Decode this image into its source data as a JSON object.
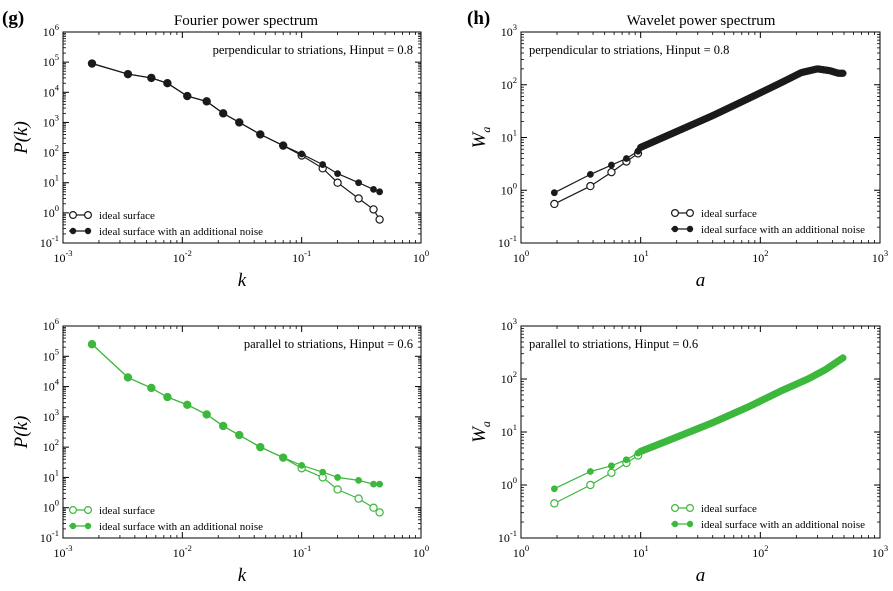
{
  "panels": {
    "g_label": "(g)",
    "h_label": "(h)",
    "g_title": "Fourier power spectrum",
    "h_title": "Wavelet power spectrum"
  },
  "colors": {
    "black_series": "#1a1a1a",
    "green_series": "#3cb83c"
  },
  "chart_data": [
    {
      "id": "g-top",
      "type": "line",
      "log_x": true,
      "log_y": true,
      "xlim": [
        0.001,
        1
      ],
      "ylim": [
        0.1,
        1000000
      ],
      "xticks": [
        0.001,
        0.01,
        0.1,
        1
      ],
      "yticks": [
        0.1,
        1,
        10,
        100,
        1000,
        10000,
        100000,
        1000000
      ],
      "x_tick_labels": [
        "10^-3",
        "10^-2",
        "10^-1",
        "10^0"
      ],
      "y_tick_labels": [
        "10^-1",
        "10^0",
        "10^1",
        "10^2",
        "10^3",
        "10^4",
        "10^5",
        "10^6"
      ],
      "xlabel": "k",
      "ylabel": "P(k)",
      "annotation": "perpendicular to striations, Hinput = 0.8",
      "legend_position": "bottom-left",
      "color": "#1a1a1a",
      "series": [
        {
          "name": "ideal surface",
          "marker": "open",
          "x": [
            0.00175,
            0.0035,
            0.0055,
            0.0075,
            0.011,
            0.016,
            0.022,
            0.03,
            0.045,
            0.07,
            0.1,
            0.15,
            0.2,
            0.3,
            0.4,
            0.45
          ],
          "y": [
            90000,
            40000,
            30000,
            20000,
            7500,
            5000,
            2000,
            1000,
            400,
            170,
            80,
            30,
            10,
            3,
            1.3,
            0.6
          ]
        },
        {
          "name": "ideal surface with an additional noise",
          "marker": "filled",
          "x": [
            0.00175,
            0.0035,
            0.0055,
            0.0075,
            0.011,
            0.016,
            0.022,
            0.03,
            0.045,
            0.07,
            0.1,
            0.15,
            0.2,
            0.3,
            0.4,
            0.45
          ],
          "y": [
            90000,
            40000,
            30000,
            20000,
            7500,
            5000,
            2000,
            1000,
            400,
            170,
            90,
            40,
            20,
            10,
            6,
            5
          ]
        }
      ]
    },
    {
      "id": "h-top",
      "type": "line",
      "log_x": true,
      "log_y": true,
      "xlim": [
        1,
        1000
      ],
      "ylim": [
        0.1,
        1000
      ],
      "xticks": [
        1,
        10,
        100,
        1000
      ],
      "yticks": [
        0.1,
        1,
        10,
        100,
        1000
      ],
      "x_tick_labels": [
        "10^0",
        "10^1",
        "10^2",
        "10^3"
      ],
      "y_tick_labels": [
        "10^-1",
        "10^0",
        "10^1",
        "10^2",
        "10^3"
      ],
      "xlabel": "a",
      "ylabel": "W_a",
      "annotation": "perpendicular to striations, Hinput = 0.8",
      "legend_position": "bottom-right",
      "color": "#1a1a1a",
      "dense_filled_tail": {
        "x_start": 10,
        "x_end": 490,
        "count": 130,
        "x_anchors": [
          10,
          20,
          40,
          80,
          150,
          220,
          300,
          380,
          450,
          490
        ],
        "y_anchors": [
          6.5,
          13,
          26,
          55,
          110,
          170,
          200,
          185,
          165,
          165
        ]
      },
      "series": [
        {
          "name": "ideal surface",
          "marker": "open",
          "x": [
            1.9,
            3.8,
            5.7,
            7.6,
            9.5
          ],
          "y": [
            0.55,
            1.2,
            2.2,
            3.5,
            5
          ]
        },
        {
          "name": "ideal surface with an additional noise",
          "marker": "filled",
          "x": [
            1.9,
            3.8,
            5.7,
            7.6,
            9.5
          ],
          "y": [
            0.9,
            2,
            3,
            4,
            5.5
          ]
        }
      ]
    },
    {
      "id": "g-bottom",
      "type": "line",
      "log_x": true,
      "log_y": true,
      "xlim": [
        0.001,
        1
      ],
      "ylim": [
        0.1,
        1000000
      ],
      "xticks": [
        0.001,
        0.01,
        0.1,
        1
      ],
      "yticks": [
        0.1,
        1,
        10,
        100,
        1000,
        10000,
        100000,
        1000000
      ],
      "x_tick_labels": [
        "10^-3",
        "10^-2",
        "10^-1",
        "10^0"
      ],
      "y_tick_labels": [
        "10^-1",
        "10^0",
        "10^1",
        "10^2",
        "10^3",
        "10^4",
        "10^5",
        "10^6"
      ],
      "xlabel": "k",
      "ylabel": "P(k)",
      "annotation": "parallel to striations, Hinput = 0.6",
      "legend_position": "bottom-left",
      "color": "#3cb83c",
      "series": [
        {
          "name": "ideal surface",
          "marker": "open",
          "x": [
            0.00175,
            0.0035,
            0.0055,
            0.0075,
            0.011,
            0.016,
            0.022,
            0.03,
            0.045,
            0.07,
            0.1,
            0.15,
            0.2,
            0.3,
            0.4,
            0.45
          ],
          "y": [
            250000,
            20000,
            9000,
            4500,
            2500,
            1200,
            500,
            250,
            100,
            45,
            20,
            10,
            4,
            2,
            1,
            0.7
          ]
        },
        {
          "name": "ideal surface with an additional noise",
          "marker": "filled",
          "x": [
            0.00175,
            0.0035,
            0.0055,
            0.0075,
            0.011,
            0.016,
            0.022,
            0.03,
            0.045,
            0.07,
            0.1,
            0.15,
            0.2,
            0.3,
            0.4,
            0.45
          ],
          "y": [
            250000,
            20000,
            9000,
            4500,
            2500,
            1200,
            500,
            250,
            100,
            45,
            25,
            15,
            10,
            8,
            6,
            6
          ]
        }
      ]
    },
    {
      "id": "h-bottom",
      "type": "line",
      "log_x": true,
      "log_y": true,
      "xlim": [
        1,
        1000
      ],
      "ylim": [
        0.1,
        1000
      ],
      "xticks": [
        1,
        10,
        100,
        1000
      ],
      "yticks": [
        0.1,
        1,
        10,
        100,
        1000
      ],
      "x_tick_labels": [
        "10^0",
        "10^1",
        "10^2",
        "10^3"
      ],
      "y_tick_labels": [
        "10^-1",
        "10^0",
        "10^1",
        "10^2",
        "10^3"
      ],
      "xlabel": "a",
      "ylabel": "W_a",
      "annotation": "parallel to striations, Hinput = 0.6",
      "legend_position": "bottom-right",
      "color": "#3cb83c",
      "dense_filled_tail": {
        "x_start": 10,
        "x_end": 490,
        "count": 130,
        "x_anchors": [
          10,
          20,
          40,
          80,
          150,
          250,
          350,
          490
        ],
        "y_anchors": [
          4.3,
          8,
          15,
          30,
          60,
          100,
          150,
          250
        ]
      },
      "series": [
        {
          "name": "ideal surface",
          "marker": "open",
          "x": [
            1.9,
            3.8,
            5.7,
            7.6,
            9.5
          ],
          "y": [
            0.45,
            1,
            1.7,
            2.6,
            3.6
          ]
        },
        {
          "name": "ideal surface with an additional noise",
          "marker": "filled",
          "x": [
            1.9,
            3.8,
            5.7,
            7.6,
            9.5
          ],
          "y": [
            0.85,
            1.8,
            2.3,
            3,
            4
          ]
        }
      ]
    }
  ]
}
